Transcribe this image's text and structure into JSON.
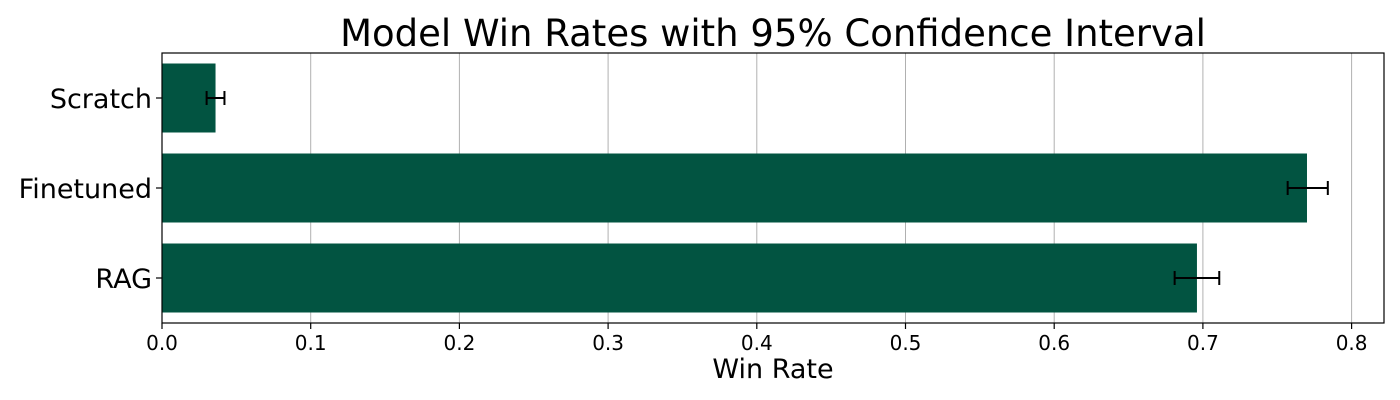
{
  "chart_data": {
    "type": "bar",
    "orientation": "horizontal",
    "title": "Model Win Rates with 95% Confidence Interval",
    "xlabel": "Win Rate",
    "ylabel": "",
    "categories": [
      "Scratch",
      "Finetuned",
      "RAG"
    ],
    "values": [
      0.036,
      0.77,
      0.696
    ],
    "error_low": [
      0.03,
      0.757,
      0.681
    ],
    "error_high": [
      0.042,
      0.784,
      0.711
    ],
    "xlim": [
      0.0,
      0.822
    ],
    "xticks": [
      0.0,
      0.1,
      0.2,
      0.3,
      0.4,
      0.5,
      0.6,
      0.7,
      0.8
    ],
    "xtick_labels": [
      "0.0",
      "0.1",
      "0.2",
      "0.3",
      "0.4",
      "0.5",
      "0.6",
      "0.7",
      "0.8"
    ],
    "grid": "x-major",
    "bar_color": "#025441",
    "errorbar_color": "#000000",
    "grid_color": "#b0b0b0"
  }
}
